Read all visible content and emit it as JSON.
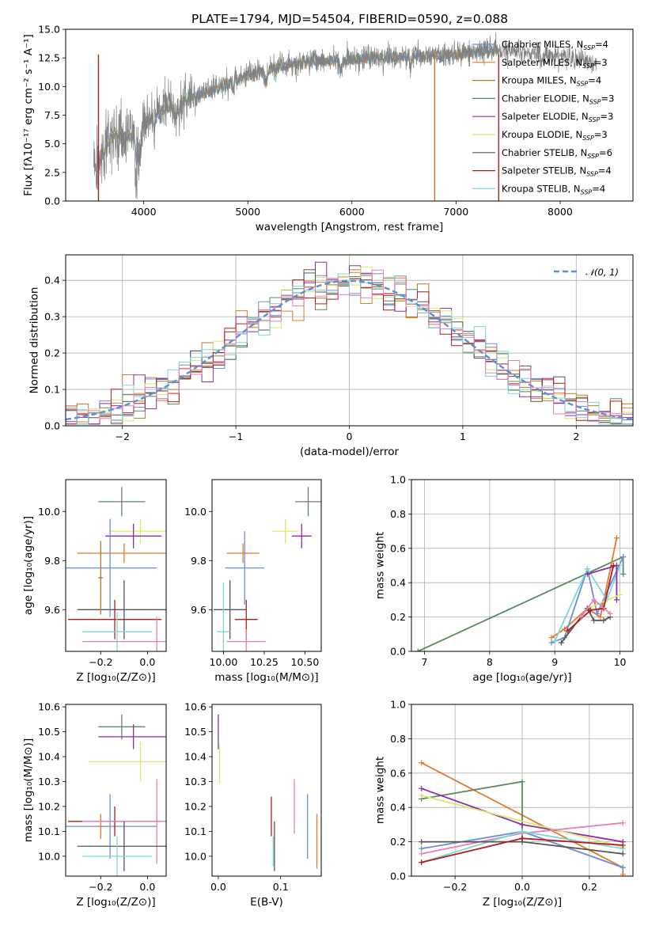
{
  "figure_title": "PLATE=1794, MJD=54504, FIBERID=0590, z=0.088",
  "colors": {
    "Chabrier MILES": "#6b8fd6",
    "Salpeter MILES": "#e07b2e",
    "Kroupa MILES": "#b07a2e",
    "Chabrier ELODIE": "#5a8a60",
    "Salpeter ELODIE": "#8e2ea8",
    "Kroupa ELODIE": "#d8e86a",
    "Chabrier STELIB": "#555555",
    "Salpeter STELIB": "#b01e1e",
    "Kroupa STELIB": "#7ed6d6",
    "pink": "#e880b8",
    "data": "#808080",
    "gauss": "#5b8fd6"
  },
  "chart_data": [
    {
      "id": "spectrum",
      "type": "line",
      "title": "PLATE=1794, MJD=54504, FIBERID=0590, z=0.088",
      "xlabel": "wavelength [Angstrom, rest frame]",
      "ylabel": "Flux [fλ10⁻¹⁷ erg cm⁻² s⁻¹ A⁻¹]",
      "xlim": [
        3250,
        8700
      ],
      "ylim": [
        0,
        15
      ],
      "xticks": [
        "4000",
        "5000",
        "6000",
        "7000",
        "8000"
      ],
      "yticks": [
        "0.0",
        "2.5",
        "5.0",
        "7.5",
        "10.0",
        "12.5",
        "15.0"
      ],
      "legend_position": "upper-right",
      "legend": [
        {
          "name": "Chabrier MILES",
          "sub": "SSP",
          "n": "4"
        },
        {
          "name": "Salpeter MILES",
          "sub": "SSP",
          "n": "3"
        },
        {
          "name": "Kroupa MILES",
          "sub": "SSP",
          "n": "4"
        },
        {
          "name": "Chabrier ELODIE",
          "sub": "SSP",
          "n": "3"
        },
        {
          "name": "Salpeter ELODIE",
          "sub": "SSP",
          "n": "3"
        },
        {
          "name": "Kroupa ELODIE",
          "sub": "SSP",
          "n": "3"
        },
        {
          "name": "Chabrier STELIB",
          "sub": "SSP",
          "n": "6"
        },
        {
          "name": "Salpeter STELIB",
          "sub": "SSP",
          "n": "4"
        },
        {
          "name": "Kroupa STELIB",
          "sub": "SSP",
          "n": "4"
        }
      ],
      "continuum_knots": [
        [
          3540,
          3.0
        ],
        [
          3700,
          5.8
        ],
        [
          3900,
          5.5
        ],
        [
          4000,
          6.8
        ],
        [
          4200,
          8.0
        ],
        [
          4400,
          8.9
        ],
        [
          4700,
          9.8
        ],
        [
          5000,
          11.0
        ],
        [
          5300,
          11.8
        ],
        [
          5600,
          12.2
        ],
        [
          5900,
          12.3
        ],
        [
          6200,
          12.5
        ],
        [
          6600,
          12.6
        ],
        [
          7000,
          12.8
        ],
        [
          7400,
          13.2
        ]
      ]
    },
    {
      "id": "residuals",
      "type": "histogram",
      "xlabel": "(data-model)/error",
      "ylabel": "Normed distribution",
      "xlim": [
        -2.5,
        2.5
      ],
      "ylim": [
        0,
        0.47
      ],
      "xticks": [
        "−2",
        "−1",
        "0",
        "1",
        "2"
      ],
      "yticks": [
        "0.0",
        "0.1",
        "0.2",
        "0.3",
        "0.4"
      ],
      "grid": true,
      "legend_position": "upper-right",
      "legend": [
        {
          "name": "𝒩(0, 1)"
        }
      ],
      "bin_width": 0.1
    },
    {
      "id": "age-vs-Z",
      "type": "errorbar",
      "xlabel": "Z [log₁₀(Z/Z⊙)]",
      "ylabel": "age  [log₁₀(age/yr)]",
      "xlim": [
        -0.35,
        0.08
      ],
      "ylim": [
        9.43,
        10.13
      ],
      "xticks": [
        "−0.2",
        "0.0"
      ],
      "yticks": [
        "9.6",
        "9.8",
        "10.0"
      ],
      "points": [
        {
          "c": "Chabrier ELODIE",
          "x": -0.11,
          "y": 10.04,
          "xe": 0.1,
          "ye": 0.06
        },
        {
          "c": "Kroupa ELODIE",
          "x": -0.03,
          "y": 9.92,
          "xe": 0.13,
          "ye": 0.05
        },
        {
          "c": "Salpeter ELODIE",
          "x": -0.06,
          "y": 9.9,
          "xe": 0.12,
          "ye": 0.05
        },
        {
          "c": "Salpeter MILES",
          "x": -0.1,
          "y": 9.83,
          "xe": 0.2,
          "ye": 0.04
        },
        {
          "c": "Chabrier MILES",
          "x": -0.16,
          "y": 9.77,
          "xe": 0.2,
          "ye": 0.2
        },
        {
          "c": "Chabrier STELIB",
          "x": -0.1,
          "y": 9.6,
          "xe": 0.2,
          "ye": 0.12
        },
        {
          "c": "Salpeter STELIB",
          "x": -0.14,
          "y": 9.56,
          "xe": 0.2,
          "ye": 0.08
        },
        {
          "c": "Kroupa STELIB",
          "x": -0.13,
          "y": 9.51,
          "xe": 0.15,
          "ye": 0.08
        },
        {
          "c": "pink",
          "x": 0.04,
          "y": 9.47,
          "xe": 0.32,
          "ye": 0.1
        },
        {
          "c": "Kroupa MILES",
          "x": -0.2,
          "y": 9.73,
          "xe": 0.01,
          "ye": 0.15
        }
      ]
    },
    {
      "id": "age-vs-mass",
      "type": "errorbar",
      "xlabel": "mass [log₁₀(M/M⊙)]",
      "ylabel": "",
      "xlim": [
        9.93,
        10.6
      ],
      "ylim": [
        9.43,
        10.13
      ],
      "xticks": [
        "10.00",
        "10.25",
        "10.50"
      ],
      "yticks": [
        "9.6",
        "9.8",
        "10.0"
      ],
      "points": [
        {
          "c": "Chabrier ELODIE",
          "x": 10.52,
          "y": 10.04,
          "xe": 0.08,
          "ye": 0.06
        },
        {
          "c": "Kroupa ELODIE",
          "x": 10.38,
          "y": 9.92,
          "xe": 0.08,
          "ye": 0.05
        },
        {
          "c": "Salpeter ELODIE",
          "x": 10.48,
          "y": 9.9,
          "xe": 0.06,
          "ye": 0.05
        },
        {
          "c": "Salpeter MILES",
          "x": 10.12,
          "y": 9.83,
          "xe": 0.1,
          "ye": 0.04
        },
        {
          "c": "Chabrier MILES",
          "x": 10.13,
          "y": 9.77,
          "xe": 0.12,
          "ye": 0.15
        },
        {
          "c": "Chabrier STELIB",
          "x": 10.04,
          "y": 9.6,
          "xe": 0.1,
          "ye": 0.12
        },
        {
          "c": "Salpeter STELIB",
          "x": 10.14,
          "y": 9.56,
          "xe": 0.07,
          "ye": 0.08
        },
        {
          "c": "Kroupa STELIB",
          "x": 10.0,
          "y": 9.51,
          "xe": 0.04,
          "ye": 0.2
        },
        {
          "c": "pink",
          "x": 10.14,
          "y": 9.47,
          "xe": 0.12,
          "ye": 0.05
        }
      ]
    },
    {
      "id": "weight-vs-age",
      "type": "line",
      "xlabel": "age  [log₁₀(age/yr)]",
      "ylabel": "mass weight",
      "xlim": [
        6.8,
        10.2
      ],
      "ylim": [
        0,
        1.0
      ],
      "xticks": [
        "7",
        "8",
        "9",
        "10"
      ],
      "yticks": [
        "0.0",
        "0.2",
        "0.4",
        "0.6",
        "0.8",
        "1.0"
      ],
      "grid": true,
      "series": [
        {
          "c": "Chabrier ELODIE",
          "x": [
            6.9,
            10.05,
            10.05
          ],
          "y": [
            0.0,
            0.55,
            0.45
          ]
        },
        {
          "c": "Salpeter MILES",
          "x": [
            8.95,
            9.15,
            9.5,
            9.7,
            9.95
          ],
          "y": [
            0.08,
            0.13,
            0.25,
            0.2,
            0.66
          ]
        },
        {
          "c": "Chabrier MILES",
          "x": [
            8.95,
            9.15,
            9.5,
            9.65,
            10.05
          ],
          "y": [
            0.05,
            0.08,
            0.48,
            0.22,
            0.55
          ]
        },
        {
          "c": "Kroupa STELIB",
          "x": [
            9.0,
            9.5,
            9.8,
            10.0
          ],
          "y": [
            0.06,
            0.48,
            0.3,
            0.5
          ]
        },
        {
          "c": "Salpeter ELODIE",
          "x": [
            9.5,
            9.95,
            9.95
          ],
          "y": [
            0.45,
            0.5,
            0.3
          ]
        },
        {
          "c": "Kroupa ELODIE",
          "x": [
            9.5,
            10.0
          ],
          "y": [
            0.25,
            0.33
          ]
        },
        {
          "c": "Chabrier STELIB",
          "x": [
            9.1,
            9.5,
            9.6,
            9.75,
            9.85
          ],
          "y": [
            0.05,
            0.25,
            0.18,
            0.18,
            0.2
          ]
        },
        {
          "c": "Salpeter STELIB",
          "x": [
            9.2,
            9.55,
            9.75,
            9.9
          ],
          "y": [
            0.12,
            0.24,
            0.25,
            0.5
          ]
        },
        {
          "c": "pink",
          "x": [
            9.4,
            9.6,
            9.85
          ],
          "y": [
            0.2,
            0.3,
            0.22
          ]
        }
      ]
    },
    {
      "id": "mass-vs-Z",
      "type": "errorbar",
      "xlabel": "Z [log₁₀(Z/Z⊙)]",
      "ylabel": "mass [log₁₀(M/M⊙)]",
      "xlim": [
        -0.35,
        0.08
      ],
      "ylim": [
        9.92,
        10.61
      ],
      "xticks": [
        "−0.2",
        "0.0"
      ],
      "yticks": [
        "10.0",
        "10.1",
        "10.2",
        "10.3",
        "10.4",
        "10.5",
        "10.6"
      ],
      "points": [
        {
          "c": "Chabrier ELODIE",
          "x": -0.11,
          "y": 10.52,
          "xe": 0.1,
          "ye": 0.05
        },
        {
          "c": "Salpeter ELODIE",
          "x": -0.06,
          "y": 10.48,
          "xe": 0.15,
          "ye": 0.05
        },
        {
          "c": "Kroupa ELODIE",
          "x": -0.03,
          "y": 10.38,
          "xe": 0.22,
          "ye": 0.08
        },
        {
          "c": "Chabrier MILES",
          "x": -0.16,
          "y": 10.12,
          "xe": 0.2,
          "ye": 0.13
        },
        {
          "c": "Salpeter STELIB",
          "x": -0.14,
          "y": 10.14,
          "xe": 0.2,
          "ye": 0.06
        },
        {
          "c": "Salpeter MILES",
          "x": -0.2,
          "y": 10.12,
          "xe": 0.01,
          "ye": 0.05
        },
        {
          "c": "pink",
          "x": 0.04,
          "y": 10.14,
          "xe": 0.32,
          "ye": 0.17
        },
        {
          "c": "Chabrier STELIB",
          "x": -0.1,
          "y": 10.04,
          "xe": 0.2,
          "ye": 0.1
        },
        {
          "c": "Kroupa STELIB",
          "x": -0.13,
          "y": 10.0,
          "xe": 0.15,
          "ye": 0.08
        }
      ]
    },
    {
      "id": "mass-vs-EBV",
      "type": "errorbar",
      "xlabel": "E(B-V)",
      "ylabel": "",
      "xlim": [
        -0.01,
        0.165
      ],
      "ylim": [
        9.92,
        10.61
      ],
      "xticks": [
        "0.0",
        "0.1"
      ],
      "yticks": [
        "10.0",
        "10.1",
        "10.2",
        "10.3",
        "10.4",
        "10.5",
        "10.6"
      ],
      "points": [
        {
          "c": "Salpeter ELODIE",
          "x": 0.0,
          "y": 10.5,
          "xe": 0,
          "ye": 0.07
        },
        {
          "c": "Kroupa ELODIE",
          "x": 0.002,
          "y": 10.37,
          "xe": 0,
          "ye": 0.08
        },
        {
          "c": "Salpeter STELIB",
          "x": 0.085,
          "y": 10.16,
          "xe": 0,
          "ye": 0.08
        },
        {
          "c": "Chabrier STELIB",
          "x": 0.09,
          "y": 10.04,
          "xe": 0,
          "ye": 0.1
        },
        {
          "c": "Kroupa STELIB",
          "x": 0.088,
          "y": 10.02,
          "xe": 0,
          "ye": 0.06
        },
        {
          "c": "pink",
          "x": 0.122,
          "y": 10.2,
          "xe": 0,
          "ye": 0.11
        },
        {
          "c": "Chabrier MILES",
          "x": 0.143,
          "y": 10.12,
          "xe": 0,
          "ye": 0.13
        },
        {
          "c": "Salpeter MILES",
          "x": 0.158,
          "y": 10.06,
          "xe": 0,
          "ye": 0.11
        }
      ]
    },
    {
      "id": "weight-vs-Z",
      "type": "line",
      "xlabel": "Z [log₁₀(Z/Z⊙)]",
      "ylabel": "mass weight",
      "xlim": [
        -0.33,
        0.33
      ],
      "ylim": [
        0,
        1.0
      ],
      "xticks": [
        "−0.2",
        "0.0",
        "0.2"
      ],
      "yticks": [
        "0.0",
        "0.2",
        "0.4",
        "0.6",
        "0.8",
        "1.0"
      ],
      "grid": true,
      "series": [
        {
          "c": "Salpeter MILES",
          "x": [
            -0.3,
            0.3,
            0.3
          ],
          "y": [
            0.66,
            0.05,
            0.01
          ]
        },
        {
          "c": "Chabrier ELODIE",
          "x": [
            -0.3,
            0.0,
            0.0
          ],
          "y": [
            0.45,
            0.55,
            0.2
          ]
        },
        {
          "c": "Salpeter ELODIE",
          "x": [
            -0.3,
            0.0,
            0.3
          ],
          "y": [
            0.51,
            0.3,
            0.2
          ]
        },
        {
          "c": "Kroupa ELODIE",
          "x": [
            -0.3,
            0.3
          ],
          "y": [
            0.47,
            0.17
          ]
        },
        {
          "c": "Chabrier MILES",
          "x": [
            -0.3,
            0.0,
            0.3
          ],
          "y": [
            0.16,
            0.26,
            0.05
          ]
        },
        {
          "c": "pink",
          "x": [
            -0.3,
            0.0,
            0.3
          ],
          "y": [
            0.13,
            0.25,
            0.31
          ]
        },
        {
          "c": "Kroupa STELIB",
          "x": [
            -0.3,
            0.0,
            0.3
          ],
          "y": [
            0.08,
            0.26,
            0.16
          ]
        },
        {
          "c": "Chabrier STELIB",
          "x": [
            -0.3,
            0.0,
            0.3
          ],
          "y": [
            0.2,
            0.2,
            0.13
          ]
        },
        {
          "c": "Salpeter STELIB",
          "x": [
            -0.3,
            0.0,
            0.3
          ],
          "y": [
            0.08,
            0.22,
            0.18
          ]
        }
      ]
    }
  ]
}
